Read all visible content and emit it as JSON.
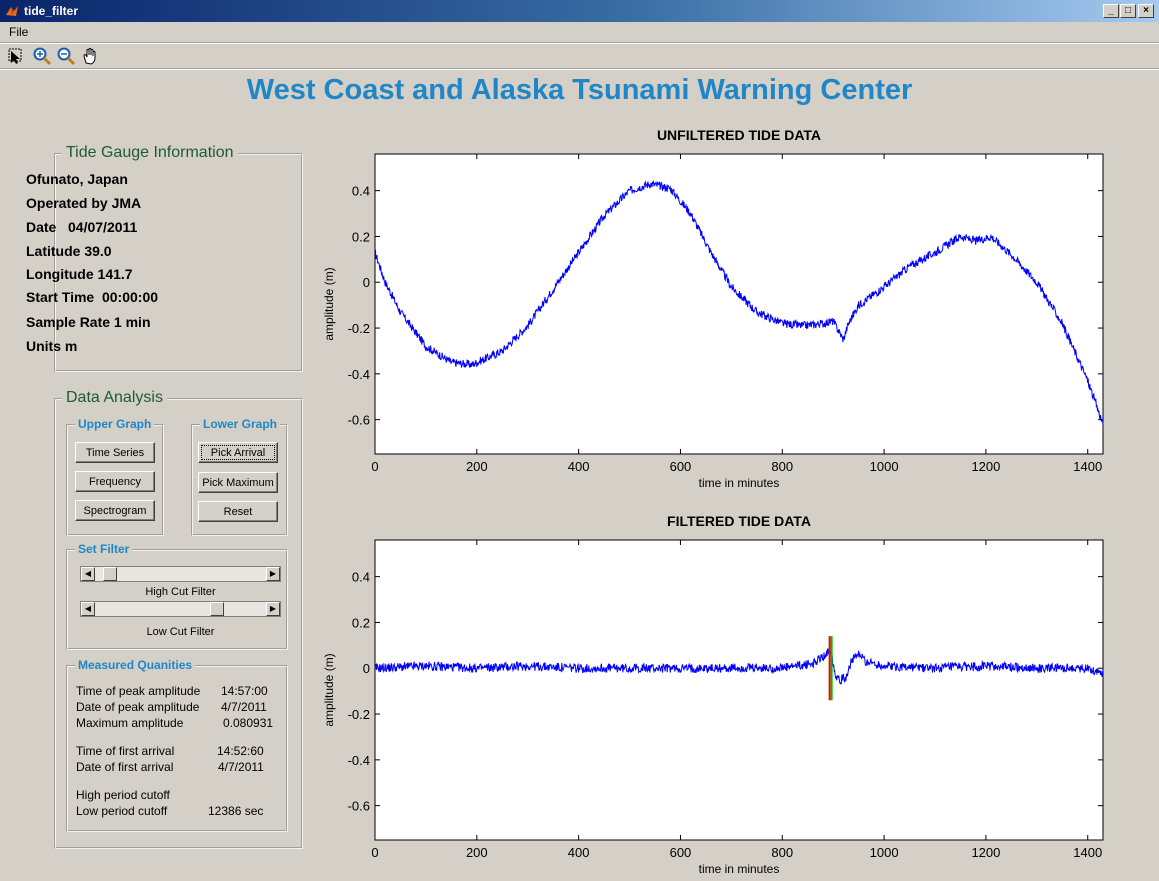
{
  "window": {
    "title": "tide_filter",
    "buttons": [
      "_",
      "□",
      "×"
    ]
  },
  "menu": {
    "file": "File"
  },
  "toolbar": {
    "icons": [
      "edit-plot-icon",
      "zoom-in-icon",
      "zoom-out-icon",
      "pan-hand-icon"
    ]
  },
  "header": {
    "title": "West Coast and Alaska Tsunami Warning Center"
  },
  "tide_info": {
    "title": "Tide Gauge Information",
    "lines": [
      "Ofunato, Japan",
      "Operated by JMA",
      "Date   04/07/2011",
      "Latitude 39.0",
      "Longitude 141.7",
      "Start Time  00:00:00",
      "Sample Rate 1 min",
      "Units m"
    ]
  },
  "analysis": {
    "title": "Data Analysis",
    "upper_graph": {
      "title": "Upper Graph",
      "buttons": [
        "Time Series",
        "Frequency",
        "Spectrogram"
      ]
    },
    "lower_graph": {
      "title": "Lower Graph",
      "buttons": [
        "Pick Arrival",
        "Pick Maximum",
        "Reset"
      ]
    },
    "set_filter": {
      "title": "Set Filter",
      "high_label": "High Cut Filter",
      "high_value": 0.05,
      "low_label": "Low Cut Filter",
      "low_value": 0.73
    },
    "measured": {
      "title": "Measured Quanities",
      "rows": [
        {
          "label": "Time of peak amplitude",
          "value": "14:57:00"
        },
        {
          "label": "Date of peak amplitude",
          "value": "4/7/2011"
        },
        {
          "label": "Maximum amplitude",
          "value": "0.080931"
        },
        {
          "label": "Time of first arrival",
          "value": "14:52:60"
        },
        {
          "label": "Date of first arrival",
          "value": "4/7/2011"
        },
        {
          "label": "High period cutoff",
          "value": ""
        },
        {
          "label": "Low period cutoff",
          "value": "12386 sec"
        }
      ]
    }
  },
  "chart_data": [
    {
      "type": "line",
      "title": "UNFILTERED TIDE DATA",
      "xlabel": "time in minutes",
      "ylabel": "amplitude  (m)",
      "xlim": [
        0,
        1430
      ],
      "ylim": [
        -0.75,
        0.56
      ],
      "xticks": [
        0,
        200,
        400,
        600,
        800,
        1000,
        1200,
        1400
      ],
      "yticks": [
        -0.6,
        -0.4,
        -0.2,
        0,
        0.2,
        0.4
      ],
      "grid": false,
      "color": "#0000ff",
      "x": [
        0,
        20,
        50,
        100,
        150,
        190,
        250,
        300,
        350,
        400,
        450,
        500,
        540,
        580,
        620,
        660,
        700,
        750,
        800,
        840,
        880,
        900,
        920,
        930,
        950,
        1000,
        1050,
        1100,
        1150,
        1180,
        1210,
        1250,
        1300,
        1350,
        1400,
        1430
      ],
      "y": [
        0.13,
        0.0,
        -0.13,
        -0.28,
        -0.35,
        -0.36,
        -0.3,
        -0.19,
        -0.03,
        0.13,
        0.29,
        0.4,
        0.43,
        0.41,
        0.3,
        0.13,
        -0.02,
        -0.13,
        -0.18,
        -0.19,
        -0.18,
        -0.17,
        -0.25,
        -0.18,
        -0.1,
        -0.02,
        0.07,
        0.13,
        0.2,
        0.18,
        0.2,
        0.12,
        0.0,
        -0.18,
        -0.43,
        -0.62
      ]
    },
    {
      "type": "line",
      "title": "FILTERED TIDE DATA",
      "xlabel": "time in minutes",
      "ylabel": "amplitude  (m)",
      "xlim": [
        0,
        1430
      ],
      "ylim": [
        -0.75,
        0.56
      ],
      "xticks": [
        0,
        200,
        400,
        600,
        800,
        1000,
        1200,
        1400
      ],
      "yticks": [
        -0.6,
        -0.4,
        -0.2,
        0,
        0.2,
        0.4
      ],
      "grid": false,
      "color": "#0000ff",
      "x": [
        0,
        100,
        200,
        300,
        400,
        500,
        600,
        700,
        800,
        860,
        880,
        895,
        905,
        915,
        925,
        935,
        950,
        965,
        980,
        1000,
        1100,
        1200,
        1300,
        1400,
        1430
      ],
      "y": [
        0.0,
        0.01,
        0.0,
        0.01,
        0.0,
        0.0,
        0.0,
        0.0,
        0.0,
        0.02,
        0.05,
        0.08,
        -0.03,
        -0.05,
        -0.04,
        0.03,
        0.06,
        0.03,
        0.02,
        0.01,
        0.0,
        0.01,
        0.0,
        0.0,
        -0.02
      ],
      "arrival_marker": {
        "x": 895,
        "ymin": -0.14,
        "ymax": 0.14,
        "colors": [
          "#ff0000",
          "#00c000"
        ]
      }
    }
  ]
}
